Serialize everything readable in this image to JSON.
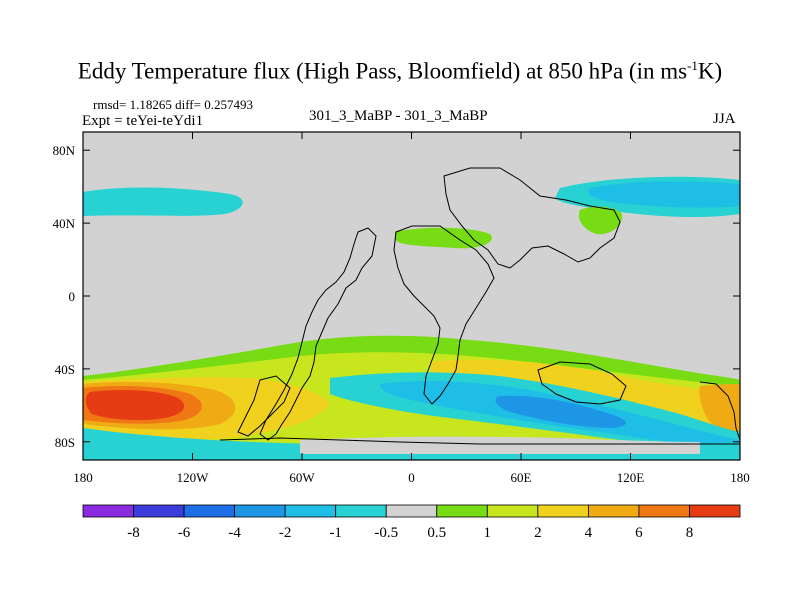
{
  "title": {
    "main": "Eddy Temperature flux (High Pass, Bloomfield) at 850 hPa (in ms",
    "sup": "-1",
    "tail": "K)"
  },
  "header": {
    "rmsd": "rmsd= 1.18265 diff= 0.257493",
    "expt": "Expt = teYei-teYdi1",
    "center": "301_3_MaBP - 301_3_MaBP",
    "season": "JJA"
  },
  "axes": {
    "y_ticks": [
      {
        "label": "80N",
        "lat": 80
      },
      {
        "label": "40N",
        "lat": 40
      },
      {
        "label": "0",
        "lat": 0
      },
      {
        "label": "40S",
        "lat": -40
      },
      {
        "label": "80S",
        "lat": -80
      }
    ],
    "x_ticks": [
      {
        "label": "180",
        "lon": -180
      },
      {
        "label": "120W",
        "lon": -120
      },
      {
        "label": "60W",
        "lon": -60
      },
      {
        "label": "0",
        "lon": 0
      },
      {
        "label": "60E",
        "lon": 60
      },
      {
        "label": "120E",
        "lon": 120
      },
      {
        "label": "180",
        "lon": 180
      }
    ],
    "lon_range": [
      -180,
      180
    ],
    "lat_range": [
      -90,
      90
    ]
  },
  "colorbar": {
    "labels": [
      "-8",
      "-6",
      "-4",
      "-2",
      "-1",
      "-0.5",
      "0.5",
      "1",
      "2",
      "4",
      "6",
      "8"
    ],
    "colors": [
      "#8a2be2",
      "#3c3cdc",
      "#1e6ee6",
      "#1e96e6",
      "#1ebee6",
      "#28d2d2",
      "#d2d2d2",
      "#78dc14",
      "#c8e61e",
      "#f0d21e",
      "#f0aa14",
      "#f07814",
      "#e63c14"
    ]
  },
  "map": {
    "background": "#d2d2d2",
    "field_regions": [
      {
        "color": "#28d2d2",
        "name": "north-pacific-negative"
      },
      {
        "color": "#28d2d2",
        "name": "north-asia-negative"
      },
      {
        "color": "#1ebee6",
        "name": "north-asia-core"
      },
      {
        "color": "#78dc14",
        "name": "europe-positive"
      },
      {
        "color": "#78dc14",
        "name": "japan-positive"
      },
      {
        "color": "#78dc14",
        "name": "southern-ocean-band"
      },
      {
        "color": "#c8e61e",
        "name": "southern-ocean-inner"
      },
      {
        "color": "#f0d21e",
        "name": "pacific-sector"
      },
      {
        "color": "#f0aa14",
        "name": "pacific-strong"
      },
      {
        "color": "#f07814",
        "name": "pacific-stronger"
      },
      {
        "color": "#e63c14",
        "name": "pacific-max"
      },
      {
        "color": "#1ebee6",
        "name": "atlantic-negative"
      },
      {
        "color": "#1e96e6",
        "name": "indian-negative"
      },
      {
        "color": "#1e6ee6",
        "name": "indian-core"
      }
    ]
  }
}
